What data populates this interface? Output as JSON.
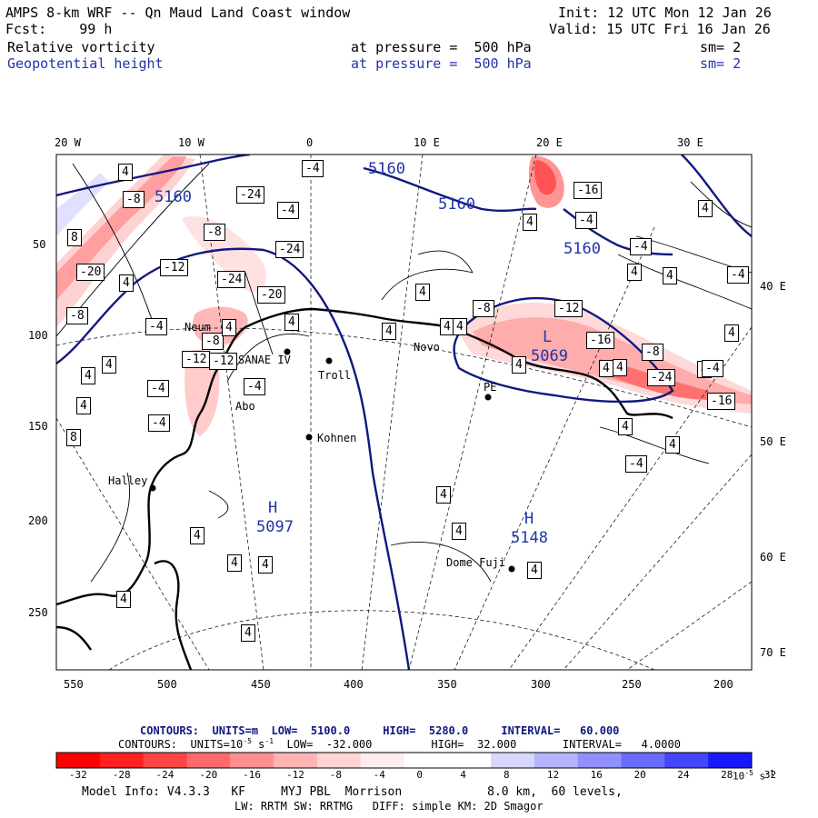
{
  "header": {
    "title": "AMPS 8-km WRF -- Qn Maud Land Coast window",
    "fcst": "Fcst:    99 h",
    "init": "Init: 12 UTC Mon 12 Jan 26",
    "valid": "Valid: 15 UTC Fri 16 Jan 26",
    "field1": {
      "name": "Relative vorticity",
      "level": "at pressure =  500 hPa",
      "sm": "sm= 2"
    },
    "field2": {
      "name": "Geopotential height",
      "level": "at pressure =  500 hPa",
      "sm": "sm= 2"
    }
  },
  "axes": {
    "top_lon": [
      "20 W",
      "10 W",
      "0",
      "10 E",
      "20 E",
      "30 E"
    ],
    "right_lon": [
      "40 E",
      "50 E",
      "60 E",
      "70 E"
    ],
    "left_y": [
      "50",
      "100",
      "150",
      "200",
      "250"
    ],
    "bottom_x": [
      "550",
      "500",
      "450",
      "400",
      "350",
      "300",
      "250",
      "200"
    ]
  },
  "places": [
    {
      "name": "Neum",
      "label": "Neum"
    },
    {
      "name": "SANAE IV",
      "label": "SANAE IV"
    },
    {
      "name": "Troll",
      "label": "Troll"
    },
    {
      "name": "Novo",
      "label": "Novo"
    },
    {
      "name": "PE",
      "label": "PE"
    },
    {
      "name": "Kohnen",
      "label": "Kohnen"
    },
    {
      "name": "Halley",
      "label": "Halley"
    },
    {
      "name": "Dome Fuji",
      "label": "Dome Fuji"
    },
    {
      "name": "Abo",
      "label": "Abo"
    }
  ],
  "height_labels": [
    "5160",
    "5160",
    "5160",
    "5160"
  ],
  "centers": [
    {
      "type": "L",
      "value": "5069"
    },
    {
      "type": "H",
      "value": "5097"
    },
    {
      "type": "H",
      "value": "5148"
    }
  ],
  "vort_labels": [
    "4",
    "-4",
    "-8",
    "-12",
    "-16",
    "-20",
    "-24",
    "8"
  ],
  "footer": {
    "contour1": "CONTOURS:  UNITS=m  LOW=  5100.0     HIGH=  5280.0     INTERVAL=   60.000",
    "contour2_a": "CONTOURS:  UNITS=10",
    "contour2_sup": "-5",
    "contour2_b": " s",
    "contour2_sup2": "-1",
    "contour2_c": "  LOW=  -32.000         HIGH=  32.000       INTERVAL=   4.0000",
    "colorbar_ticks": [
      "-32",
      "-28",
      "-24",
      "-20",
      "-16",
      "-12",
      "-8",
      "-4",
      "0",
      "4",
      "8",
      "12",
      "16",
      "20",
      "24",
      "28",
      "32"
    ],
    "colorbar_unit": "10",
    "colorbar_unit_sup": "-5",
    "colorbar_unit_b": " s",
    "colorbar_unit_sup2": "-1",
    "model_info": "Model Info: V4.3.3   KF     MYJ PBL  Morrison            8.0 km,  60 levels,",
    "model_info2": "LW: RRTM SW: RRTMG   DIFF: simple KM: 2D Smagor"
  },
  "colors": {
    "colorbar": [
      "#ff0000",
      "#ff2020",
      "#ff4545",
      "#ff6a6a",
      "#ff9090",
      "#ffb4b4",
      "#ffd4d4",
      "#ffecec",
      "#ffffff",
      "#ffffff",
      "#d6d6ff",
      "#b4b4ff",
      "#9090ff",
      "#6a6aff",
      "#4545ff",
      "#1818ff"
    ],
    "height_contour": "#101880",
    "text_blue": "#2233aa"
  }
}
